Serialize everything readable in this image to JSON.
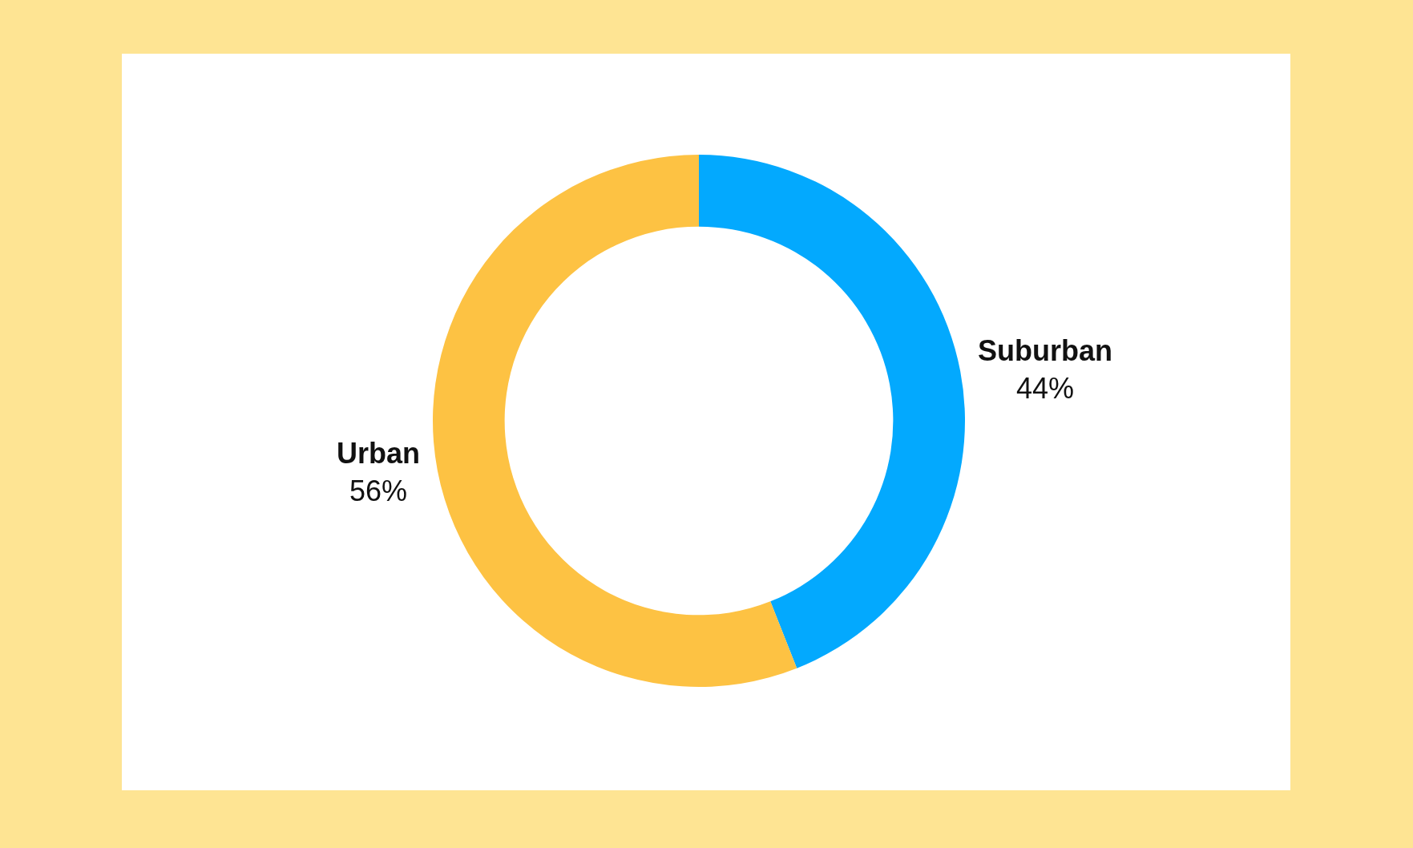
{
  "chart_data": {
    "type": "donut",
    "categories": [
      "Suburban",
      "Urban"
    ],
    "values": [
      44,
      56
    ],
    "value_labels": [
      "44%",
      "56%"
    ],
    "colors": [
      "#03a9fe",
      "#fdc243"
    ],
    "legend": false
  }
}
